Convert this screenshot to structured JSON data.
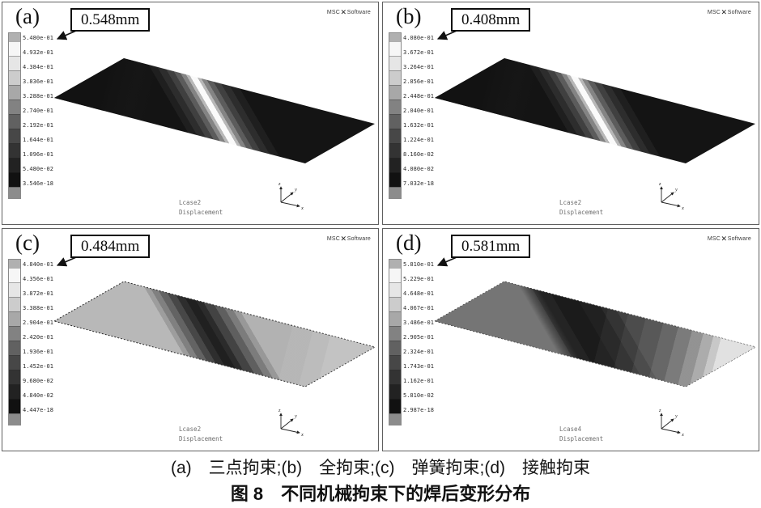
{
  "figure": {
    "caption_line1": "(a)　三点拘束;(b)　全拘束;(c)　弹簧拘束;(d)　接触拘束",
    "caption_line2": "图 8　不同机械拘束下的焊后变形分布"
  },
  "logo": {
    "msc": "MSC",
    "x_glyph": "✕",
    "software": "Software"
  },
  "triad": {
    "x": "x",
    "y": "y",
    "z": "z"
  },
  "colorbar": {
    "colors": [
      "#b0b0b0",
      "#f6f6f6",
      "#e6e6e6",
      "#cccccc",
      "#a8a8a8",
      "#828282",
      "#616161",
      "#474747",
      "#333333",
      "#222222",
      "#111111",
      "#8c8c8c"
    ]
  },
  "panels": [
    {
      "label": "(a)",
      "constraint": "三点拘束",
      "max_label": "0.548mm",
      "lcase": "Lcase2",
      "result_type": "Displacement",
      "legend_values": [
        "5.480e-01",
        "4.932e-01",
        "4.384e-01",
        "3.836e-01",
        "3.288e-01",
        "2.740e-01",
        "2.192e-01",
        "1.644e-01",
        "1.096e-01",
        "5.480e-02",
        "3.546e-18"
      ]
    },
    {
      "label": "(b)",
      "constraint": "全拘束",
      "max_label": "0.408mm",
      "lcase": "Lcase2",
      "result_type": "Displacement",
      "legend_values": [
        "4.080e-01",
        "3.672e-01",
        "3.264e-01",
        "2.856e-01",
        "2.448e-01",
        "2.040e-01",
        "1.632e-01",
        "1.224e-01",
        "8.160e-02",
        "4.080e-02",
        "7.032e-18"
      ]
    },
    {
      "label": "(c)",
      "constraint": "弹簧拘束",
      "max_label": "0.484mm",
      "lcase": "Lcase2",
      "result_type": "Displacement",
      "legend_values": [
        "4.840e-01",
        "4.356e-01",
        "3.872e-01",
        "3.388e-01",
        "2.904e-01",
        "2.420e-01",
        "1.936e-01",
        "1.452e-01",
        "9.680e-02",
        "4.840e-02",
        "4.447e-18"
      ]
    },
    {
      "label": "(d)",
      "constraint": "接触拘束",
      "max_label": "0.581mm",
      "lcase": "Lcase4",
      "result_type": "Displacement",
      "legend_values": [
        "5.810e-01",
        "5.229e-01",
        "4.648e-01",
        "4.067e-01",
        "3.486e-01",
        "2.905e-01",
        "2.324e-01",
        "1.743e-01",
        "1.162e-01",
        "5.810e-02",
        "2.987e-18"
      ]
    }
  ]
}
